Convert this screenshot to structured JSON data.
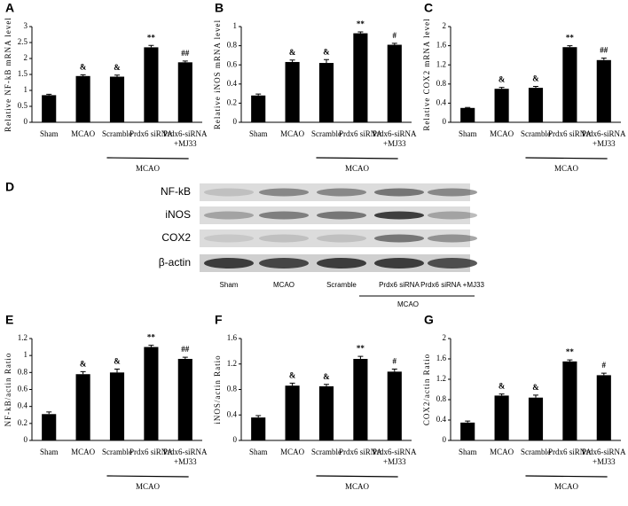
{
  "chart_data": [
    {
      "type": "bar",
      "label": "A",
      "ylabel": "Relative NF-kB mRNA level",
      "color": "#000000",
      "categories": [
        "Sham",
        "MCAO",
        "Scramble",
        "Prdx6 siRNA",
        "Prdx6-siRNA\n+MJ33"
      ],
      "values": [
        0.85,
        1.45,
        1.43,
        2.35,
        1.88
      ],
      "errors": [
        0.03,
        0.04,
        0.05,
        0.06,
        0.04
      ],
      "annotations": [
        null,
        "&",
        "&",
        "**",
        "##"
      ],
      "group_label": "MCAO",
      "ylim": [
        0,
        3
      ],
      "yticks": [
        0,
        0.5,
        1,
        1.5,
        2,
        2.5,
        3
      ]
    },
    {
      "type": "bar",
      "label": "B",
      "ylabel": "Relative iNOS mRNA level",
      "color": "#000000",
      "categories": [
        "Sham",
        "MCAO",
        "Scramble",
        "Prdx6 siRNA",
        "Prdx6-siRNA\n+MJ33"
      ],
      "values": [
        0.28,
        0.63,
        0.62,
        0.93,
        0.81
      ],
      "errors": [
        0.015,
        0.02,
        0.035,
        0.015,
        0.015
      ],
      "annotations": [
        null,
        "&",
        "&",
        "**",
        "#"
      ],
      "group_label": "MCAO",
      "ylim": [
        0,
        1
      ],
      "yticks": [
        0,
        0.2,
        0.4,
        0.6,
        0.8,
        1
      ]
    },
    {
      "type": "bar",
      "label": "C",
      "ylabel": "Relative COX2 mRNA level",
      "color": "#000000",
      "categories": [
        "Sham",
        "MCAO",
        "Scramble",
        "Prdx6 siRNA",
        "Prdx6-siRNA\n+MJ33"
      ],
      "values": [
        0.3,
        0.7,
        0.72,
        1.57,
        1.3
      ],
      "errors": [
        0.01,
        0.03,
        0.03,
        0.03,
        0.04
      ],
      "annotations": [
        null,
        "&",
        "&",
        "**",
        "##"
      ],
      "group_label": "MCAO",
      "ylim": [
        0,
        2
      ],
      "yticks": [
        0,
        0.4,
        0.8,
        1.2,
        1.6,
        2
      ]
    },
    {
      "type": "bar",
      "label": "E",
      "ylabel": "NF-kB/actin Ratio",
      "color": "#000000",
      "categories": [
        "Sham",
        "MCAO",
        "Scramble",
        "Prdx6 siRNA",
        "Prdx6-siRNA\n+MJ33"
      ],
      "values": [
        0.31,
        0.78,
        0.8,
        1.1,
        0.96
      ],
      "errors": [
        0.025,
        0.03,
        0.04,
        0.02,
        0.02
      ],
      "annotations": [
        null,
        "&",
        "&",
        "**",
        "##"
      ],
      "group_label": "MCAO",
      "ylim": [
        0,
        1.2
      ],
      "yticks": [
        0,
        0.2,
        0.4,
        0.6,
        0.8,
        1,
        1.2
      ]
    },
    {
      "type": "bar",
      "label": "F",
      "ylabel": "iNOS/actin Ratio",
      "color": "#000000",
      "categories": [
        "Sham",
        "MCAO",
        "Scramble",
        "Prdx6 siRNA",
        "Prdx6-siRNA\n+MJ33"
      ],
      "values": [
        0.36,
        0.86,
        0.85,
        1.28,
        1.08
      ],
      "errors": [
        0.03,
        0.04,
        0.03,
        0.04,
        0.04
      ],
      "annotations": [
        null,
        "&",
        "&",
        "**",
        "#"
      ],
      "group_label": "MCAO",
      "ylim": [
        0,
        1.6
      ],
      "yticks": [
        0,
        0.4,
        0.8,
        1.2,
        1.6
      ]
    },
    {
      "type": "bar",
      "label": "G",
      "ylabel": "COX2/actin Ratio",
      "color": "#000000",
      "categories": [
        "Sham",
        "MCAO",
        "Scramble",
        "Prdx6 siRNA",
        "Prdx6-siRNA\n+MJ33"
      ],
      "values": [
        0.35,
        0.88,
        0.84,
        1.55,
        1.28
      ],
      "errors": [
        0.03,
        0.03,
        0.05,
        0.03,
        0.04
      ],
      "annotations": [
        null,
        "&",
        "&",
        "**",
        "#"
      ],
      "group_label": "MCAO",
      "ylim": [
        0,
        2
      ],
      "yticks": [
        0,
        0.4,
        0.8,
        1.2,
        1.6,
        2
      ]
    }
  ],
  "blot": {
    "label": "D",
    "rows": [
      "NF-kB",
      "iNOS",
      "COX2",
      "β-actin"
    ],
    "lanes": [
      "Sham",
      "MCAO",
      "Scramble",
      "Prdx6  siRNA",
      "Prdx6 siRNA +MJ33"
    ],
    "group_label": "MCAO"
  }
}
